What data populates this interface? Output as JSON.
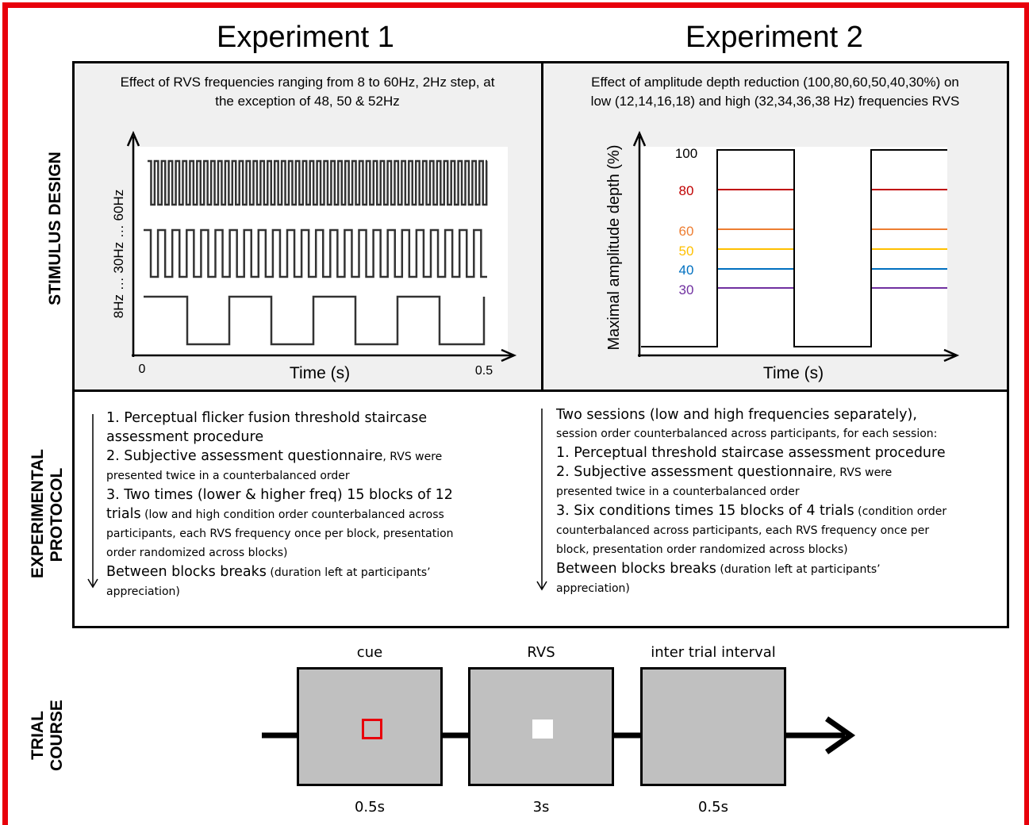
{
  "titles": {
    "exp1": "Experiment 1",
    "exp2": "Experiment 2"
  },
  "side_labels": {
    "stimulus": "STIMULUS DESIGN",
    "protocol_1": "EXPERIMENTAL",
    "protocol_2": "PROTOCOL",
    "trial_1": "TRIAL",
    "trial_2": "COURSE"
  },
  "exp1_stimulus": {
    "description_1": "Effect of RVS frequencies  ranging from 8 to 60Hz, 2Hz step, at",
    "description_2": "the exception of 48, 50 & 52Hz",
    "y_label": "8Hz  …  30Hz  …  60Hz",
    "x_label": "Time (s)",
    "x_min": "0",
    "x_max": "0.5"
  },
  "exp2_stimulus": {
    "description_1": "Effect of amplitude depth reduction (100,80,60,50,40,30%) on",
    "description_2": "low (12,14,16,18) and high (32,34,36,38 Hz) frequencies RVS",
    "y_label": "Maximal amplitude depth (%)",
    "x_label": "Time (s)",
    "levels": [
      {
        "label": "100",
        "color": "#000000"
      },
      {
        "label": "80",
        "color": "#c00000"
      },
      {
        "label": "60",
        "color": "#ed7d31"
      },
      {
        "label": "50",
        "color": "#ffc000"
      },
      {
        "label": "40",
        "color": "#0070c0"
      },
      {
        "label": "30",
        "color": "#7030a0"
      }
    ]
  },
  "exp1_protocol": {
    "l1": "1. Perceptual flicker fusion threshold staircase",
    "l2": "assessment procedure",
    "l3_big": "2. Subjective assessment questionnaire",
    "l3_small": ", RVS were",
    "l4": "presented twice in a counterbalanced order",
    "l5": "3. Two times (lower & higher freq) 15 blocks of 12",
    "l6_big": "trials",
    "l6_small": " (low and high condition order counterbalanced across",
    "l7": "participants, each RVS frequency once per block, presentation",
    "l8": "order randomized across blocks)",
    "l9_big": "Between blocks breaks",
    "l9_small": " (duration left at participants’",
    "l10": "appreciation)"
  },
  "exp2_protocol": {
    "l1": "Two sessions (low and high frequencies separately),",
    "l2": "session order counterbalanced across participants, for each session:",
    "l3": "1. Perceptual threshold staircase assessment procedure",
    "l4_big": "2. Subjective assessment questionnaire",
    "l4_small": ", RVS were",
    "l5": "presented twice in a counterbalanced order",
    "l6_big": "3.  Six conditions times 15 blocks of 4 trials",
    "l6_small": " (condition order",
    "l7": "counterbalanced across participants, each RVS frequency once per",
    "l8": "block, presentation order randomized across blocks)",
    "l9_big": "Between blocks breaks",
    "l9_small": " (duration left at participants’",
    "l10": "appreciation)"
  },
  "trial": {
    "steps": [
      {
        "name": "cue",
        "duration": "0.5s"
      },
      {
        "name": "RVS",
        "duration": "3s"
      },
      {
        "name": "inter trial interval",
        "duration": "0.5s"
      }
    ]
  }
}
